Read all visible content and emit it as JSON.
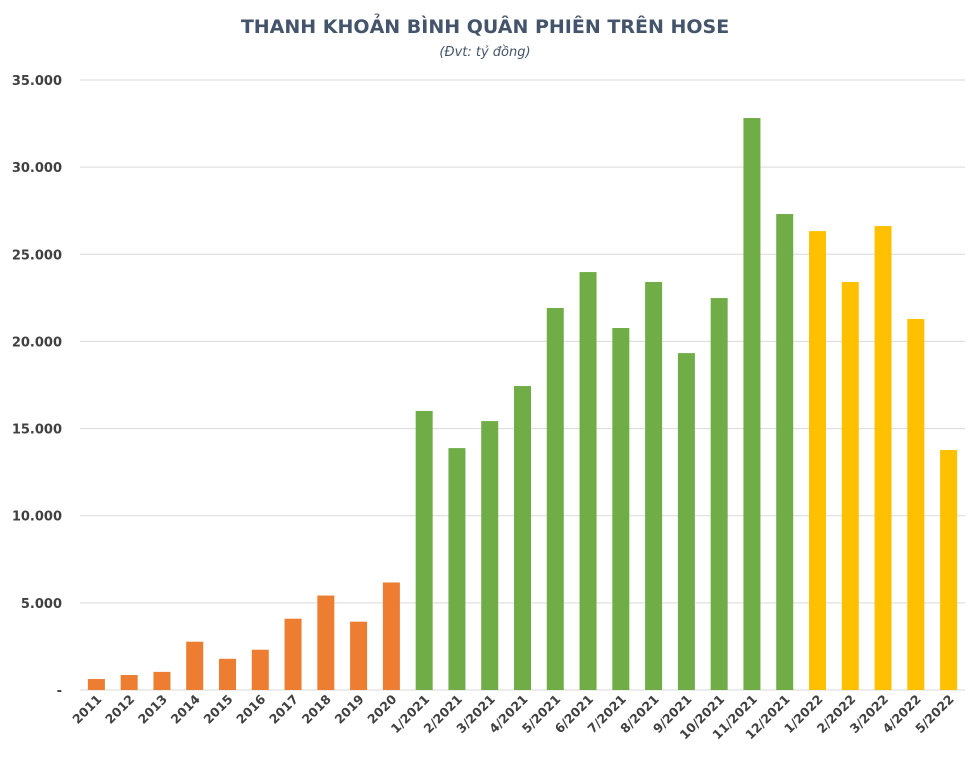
{
  "chart_data": {
    "type": "bar",
    "title": "THANH KHOẢN BÌNH QUÂN PHIÊN TRÊN HOSE",
    "subtitle": "(Đvt: tỷ đồng)",
    "xlabel": "",
    "ylabel": "",
    "ylim": [
      0,
      35000
    ],
    "yticks": [
      0,
      5000,
      10000,
      15000,
      20000,
      25000,
      30000,
      35000
    ],
    "ytick_labels": [
      "-",
      "5.000",
      "10.000",
      "15.000",
      "20.000",
      "25.000",
      "30.000",
      "35.000"
    ],
    "grid": true,
    "legend": "none",
    "categories": [
      "2011",
      "2012",
      "2013",
      "2014",
      "2015",
      "2016",
      "2017",
      "2018",
      "2019",
      "2020",
      "1/2021",
      "2/2021",
      "3/2021",
      "4/2021",
      "5/2021",
      "6/2021",
      "7/2021",
      "8/2021",
      "9/2021",
      "10/2021",
      "11/2021",
      "12/2021",
      "1/2022",
      "2/2022",
      "3/2022",
      "4/2022",
      "5/2022"
    ],
    "values": [
      630,
      860,
      1040,
      2770,
      1790,
      2310,
      4090,
      5420,
      3920,
      6170,
      16010,
      13880,
      15430,
      17440,
      21920,
      23980,
      20770,
      23410,
      19330,
      22490,
      32820,
      27310,
      26330,
      23410,
      26620,
      21290,
      13770
    ],
    "colors": {
      "yearly": "#ED7D31",
      "monthly_2021": "#70AD47",
      "monthly_2022": "#FFC000",
      "title": "#44546A",
      "grid": "#D9D9D9"
    },
    "color_groups": [
      "yearly",
      "yearly",
      "yearly",
      "yearly",
      "yearly",
      "yearly",
      "yearly",
      "yearly",
      "yearly",
      "yearly",
      "monthly_2021",
      "monthly_2021",
      "monthly_2021",
      "monthly_2021",
      "monthly_2021",
      "monthly_2021",
      "monthly_2021",
      "monthly_2021",
      "monthly_2021",
      "monthly_2021",
      "monthly_2021",
      "monthly_2021",
      "monthly_2022",
      "monthly_2022",
      "monthly_2022",
      "monthly_2022",
      "monthly_2022"
    ]
  }
}
